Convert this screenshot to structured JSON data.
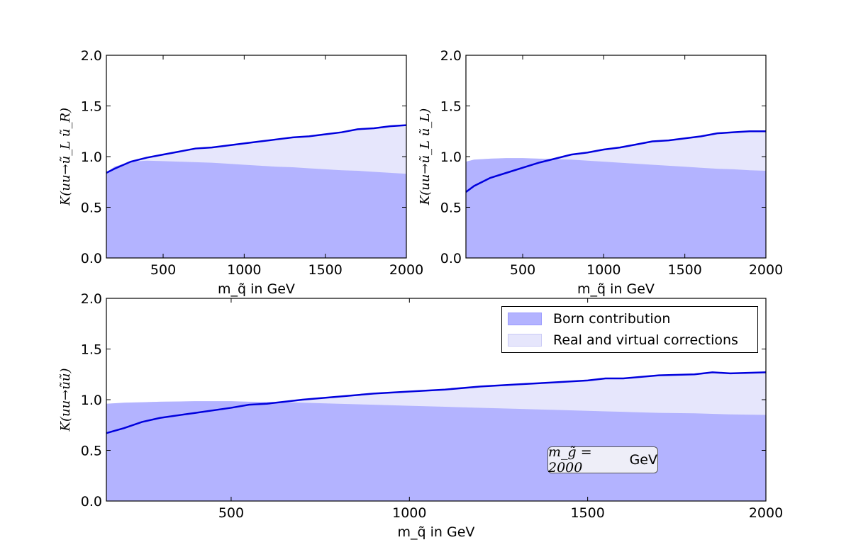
{
  "colors": {
    "born_fill": "#b3b3ff",
    "correction_fill": "#e6e6fc",
    "k_line": "#0000dd"
  },
  "legend": {
    "born_label": "Born contribution",
    "corrections_label": "Real and virtual corrections"
  },
  "annotation": {
    "symbol": "m_g̃ = 2000",
    "unit": "GeV"
  },
  "chart_data": [
    {
      "type": "area",
      "id": "top-left",
      "ylabel": "K(uu→ũ_L ũ_R)",
      "xlabel": "m_q̃ in GeV",
      "xlim": [
        150,
        2000
      ],
      "ylim": [
        0,
        2.0
      ],
      "xticks": [
        500,
        1000,
        1500,
        2000
      ],
      "yticks": [
        0.0,
        0.5,
        1.0,
        1.5,
        2.0
      ],
      "x": [
        150,
        200,
        300,
        400,
        500,
        600,
        700,
        800,
        900,
        1000,
        1100,
        1200,
        1300,
        1400,
        1500,
        1600,
        1700,
        1800,
        1900,
        2000
      ],
      "born": [
        0.84,
        0.9,
        0.95,
        0.96,
        0.955,
        0.95,
        0.945,
        0.94,
        0.93,
        0.92,
        0.91,
        0.9,
        0.895,
        0.885,
        0.875,
        0.865,
        0.86,
        0.85,
        0.84,
        0.83
      ],
      "k_factor": [
        0.84,
        0.88,
        0.95,
        0.99,
        1.02,
        1.05,
        1.08,
        1.09,
        1.11,
        1.13,
        1.15,
        1.17,
        1.19,
        1.2,
        1.22,
        1.24,
        1.27,
        1.28,
        1.3,
        1.31
      ]
    },
    {
      "type": "area",
      "id": "top-right",
      "ylabel": "K(uu→ũ_L ũ_L)",
      "xlabel": "m_q̃ in GeV",
      "xlim": [
        150,
        2000
      ],
      "ylim": [
        0,
        2.0
      ],
      "xticks": [
        500,
        1000,
        1500,
        2000
      ],
      "yticks": [
        0.0,
        0.5,
        1.0,
        1.5,
        2.0
      ],
      "x": [
        150,
        200,
        300,
        400,
        500,
        600,
        700,
        800,
        900,
        1000,
        1100,
        1200,
        1300,
        1400,
        1500,
        1600,
        1700,
        1800,
        1900,
        2000
      ],
      "born": [
        0.95,
        0.97,
        0.98,
        0.985,
        0.985,
        0.98,
        0.975,
        0.97,
        0.96,
        0.95,
        0.94,
        0.93,
        0.92,
        0.91,
        0.9,
        0.89,
        0.88,
        0.875,
        0.865,
        0.86
      ],
      "k_factor": [
        0.65,
        0.71,
        0.79,
        0.84,
        0.89,
        0.94,
        0.98,
        1.02,
        1.04,
        1.07,
        1.09,
        1.12,
        1.15,
        1.16,
        1.18,
        1.2,
        1.23,
        1.24,
        1.25,
        1.25
      ]
    },
    {
      "type": "area",
      "id": "bottom",
      "ylabel": "K(uu→ũũ)",
      "xlabel": "m_q̃ in GeV",
      "xlim": [
        150,
        2000
      ],
      "ylim": [
        0,
        2.0
      ],
      "xticks": [
        500,
        1000,
        1500,
        2000
      ],
      "yticks": [
        0.0,
        0.5,
        1.0,
        1.5,
        2.0
      ],
      "x": [
        150,
        200,
        250,
        300,
        400,
        500,
        550,
        600,
        650,
        700,
        800,
        900,
        1000,
        1100,
        1200,
        1300,
        1400,
        1500,
        1550,
        1600,
        1700,
        1800,
        1850,
        1900,
        2000
      ],
      "born": [
        0.96,
        0.97,
        0.975,
        0.98,
        0.985,
        0.985,
        0.98,
        0.978,
        0.975,
        0.97,
        0.96,
        0.95,
        0.94,
        0.93,
        0.92,
        0.91,
        0.9,
        0.89,
        0.885,
        0.88,
        0.87,
        0.865,
        0.86,
        0.855,
        0.85
      ],
      "k_factor": [
        0.67,
        0.72,
        0.78,
        0.82,
        0.87,
        0.92,
        0.95,
        0.96,
        0.98,
        1.0,
        1.03,
        1.06,
        1.08,
        1.1,
        1.13,
        1.15,
        1.17,
        1.19,
        1.21,
        1.21,
        1.24,
        1.25,
        1.27,
        1.26,
        1.27
      ]
    }
  ]
}
